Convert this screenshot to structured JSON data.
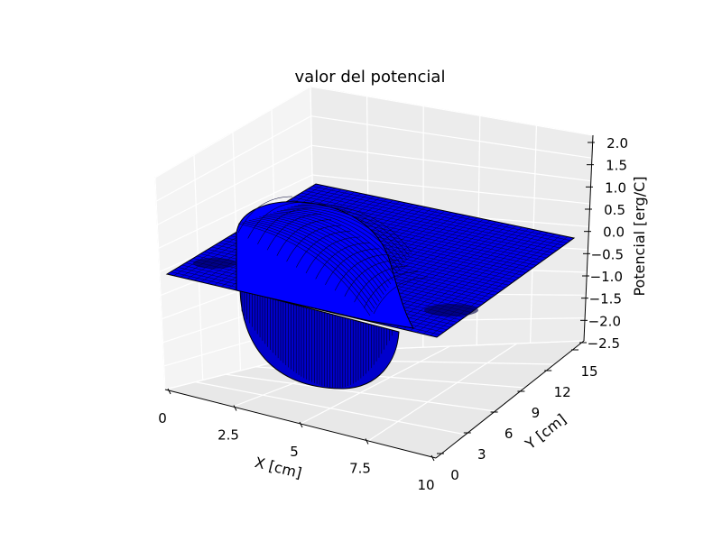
{
  "chart_data": {
    "type": "surface3d",
    "title": "valor del potencial",
    "xlabel": "X [cm]",
    "ylabel": "Y [cm]",
    "zlabel": "Potencial [erg/C]",
    "xlim": [
      0,
      10
    ],
    "ylim": [
      0,
      15
    ],
    "zlim": [
      -2.5,
      2.0
    ],
    "x_ticks": [
      "0",
      "2.5",
      "5",
      "7.5",
      "10"
    ],
    "y_ticks": [
      "0",
      "3",
      "6",
      "9",
      "12",
      "15"
    ],
    "z_ticks": [
      "−2.5",
      "−2.0",
      "−1.5",
      "−1.0",
      "−0.5",
      "0.0",
      "0.5",
      "1.0",
      "1.5",
      "2.0"
    ],
    "grid": true,
    "surface_color": "#0000ff",
    "edge_color": "#000000",
    "pane_color": "#f2f2f2",
    "surface": {
      "description_source": "shape read from plot",
      "bump_center": [
        5,
        3
      ],
      "bump_max": 1.3,
      "bump_min": -2.5,
      "baseline": 0
    }
  }
}
